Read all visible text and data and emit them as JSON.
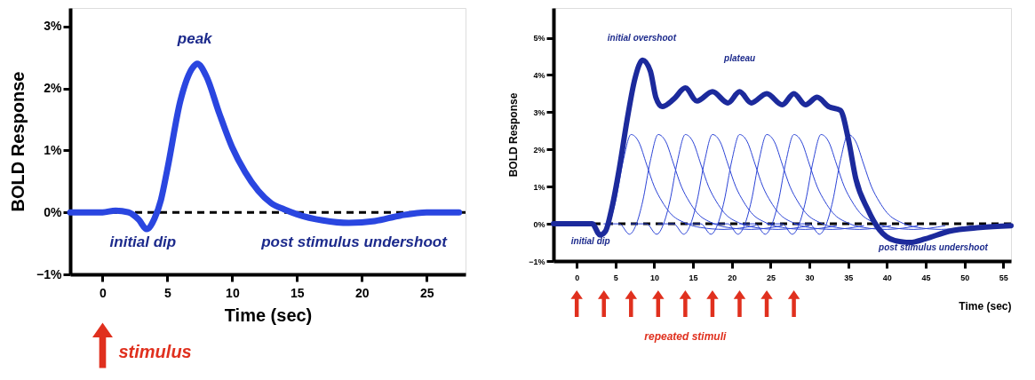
{
  "chart_data": [
    {
      "type": "line",
      "xlabel": "Time (sec)",
      "ylabel": "BOLD Response",
      "xlim": [
        -2.5,
        28
      ],
      "xticks": [
        0,
        5,
        10,
        15,
        20,
        25
      ],
      "ylim": [
        -1,
        3.3
      ],
      "yticks": [
        {
          "value": -1,
          "label": "−1%"
        },
        {
          "value": 0,
          "label": "0%"
        },
        {
          "value": 1,
          "label": "1%"
        },
        {
          "value": 2,
          "label": "2%"
        },
        {
          "value": 3,
          "label": "3%"
        }
      ],
      "grid": false,
      "series": [
        {
          "color": "#2a46e0",
          "x": [
            -2.5,
            0,
            1,
            2,
            2.8,
            3.4,
            4,
            4.5,
            5,
            6,
            7,
            7.3,
            8,
            9,
            10,
            11,
            12,
            13,
            14,
            15,
            17,
            19,
            21,
            23,
            25,
            27.5
          ],
          "values": [
            0,
            0,
            0.03,
            0,
            -0.12,
            -0.27,
            -0.1,
            0.2,
            0.7,
            1.8,
            2.35,
            2.4,
            2.2,
            1.6,
            1.05,
            0.65,
            0.35,
            0.15,
            0.05,
            -0.03,
            -0.13,
            -0.17,
            -0.14,
            -0.05,
            0,
            0
          ]
        }
      ],
      "ref_lines": [
        {
          "axis": "y",
          "value": 0,
          "color": "#000000",
          "line_style": "dashed"
        }
      ],
      "annotations": [
        "peak",
        "initial dip",
        "post stimulus undershoot",
        "stimulus"
      ]
    },
    {
      "type": "line",
      "xlabel": "Time (sec)",
      "ylabel": "BOLD Response",
      "xlim": [
        -3,
        56
      ],
      "xticks": [
        0,
        5,
        10,
        15,
        20,
        25,
        30,
        35,
        40,
        45,
        50,
        55
      ],
      "ylim": [
        -1,
        5.8
      ],
      "yticks": [
        {
          "value": -1,
          "label": "−1%"
        },
        {
          "value": 0,
          "label": "0%"
        },
        {
          "value": 1,
          "label": "1%"
        },
        {
          "value": 2,
          "label": "2%"
        },
        {
          "value": 3,
          "label": "3%"
        },
        {
          "value": 4,
          "label": "4%"
        },
        {
          "value": 5,
          "label": "5%"
        }
      ],
      "grid": false,
      "series": [
        {
          "color": "#1c2a9c",
          "x": [
            -3,
            0,
            2,
            3,
            3.7,
            4.5,
            5.5,
            6.5,
            7.5,
            8.5,
            9.5,
            10.2,
            11,
            12.5,
            14,
            15.5,
            17.5,
            19.5,
            21,
            22.5,
            24.5,
            26.5,
            28,
            29.5,
            31,
            32.5,
            34,
            35,
            36,
            37.5,
            39,
            41,
            43,
            45,
            48,
            52,
            56
          ],
          "values": [
            0,
            0,
            0,
            -0.3,
            -0.2,
            0.4,
            1.5,
            2.8,
            3.9,
            4.4,
            4.1,
            3.4,
            3.15,
            3.35,
            3.65,
            3.3,
            3.55,
            3.25,
            3.55,
            3.25,
            3.5,
            3.2,
            3.5,
            3.2,
            3.4,
            3.15,
            3.05,
            2.3,
            1.2,
            0.4,
            -0.15,
            -0.45,
            -0.5,
            -0.4,
            -0.2,
            -0.1,
            -0.05
          ]
        },
        {
          "color": "#2b43d6",
          "x": [
            0,
            2,
            3.3,
            4.2,
            5,
            6,
            7,
            8,
            9,
            10,
            11,
            12,
            14,
            16,
            19,
            23
          ],
          "values": [
            0,
            0,
            -0.28,
            0,
            0.6,
            1.7,
            2.4,
            2.2,
            1.6,
            1.0,
            0.6,
            0.3,
            0.02,
            -0.1,
            -0.15,
            -0.05
          ]
        },
        {
          "color": "#2b43d6",
          "x": [
            3.5,
            5.5,
            6.8,
            7.7,
            8.5,
            9.5,
            10.5,
            11.5,
            12.5,
            13.5,
            14.5,
            15.5,
            17.5,
            19.5,
            22.5,
            26.5
          ],
          "values": [
            0,
            0,
            -0.28,
            0,
            0.6,
            1.7,
            2.4,
            2.2,
            1.6,
            1.0,
            0.6,
            0.3,
            0.02,
            -0.1,
            -0.15,
            -0.05
          ]
        },
        {
          "color": "#2b43d6",
          "x": [
            7,
            9,
            10.3,
            11.2,
            12,
            13,
            14,
            15,
            16,
            17,
            18,
            19,
            21,
            23,
            26,
            30
          ],
          "values": [
            0,
            0,
            -0.28,
            0,
            0.6,
            1.7,
            2.4,
            2.2,
            1.6,
            1.0,
            0.6,
            0.3,
            0.02,
            -0.1,
            -0.15,
            -0.05
          ]
        },
        {
          "color": "#2b43d6",
          "x": [
            10.5,
            12.5,
            13.8,
            14.7,
            15.5,
            16.5,
            17.5,
            18.5,
            19.5,
            20.5,
            21.5,
            22.5,
            24.5,
            26.5,
            29.5,
            33.5
          ],
          "values": [
            0,
            0,
            -0.28,
            0,
            0.6,
            1.7,
            2.4,
            2.2,
            1.6,
            1.0,
            0.6,
            0.3,
            0.02,
            -0.1,
            -0.15,
            -0.05
          ]
        },
        {
          "color": "#2b43d6",
          "x": [
            14,
            16,
            17.3,
            18.2,
            19,
            20,
            21,
            22,
            23,
            24,
            25,
            26,
            28,
            30,
            33,
            37
          ],
          "values": [
            0,
            0,
            -0.28,
            0,
            0.6,
            1.7,
            2.4,
            2.2,
            1.6,
            1.0,
            0.6,
            0.3,
            0.02,
            -0.1,
            -0.15,
            -0.05
          ]
        },
        {
          "color": "#2b43d6",
          "x": [
            17.5,
            19.5,
            20.8,
            21.7,
            22.5,
            23.5,
            24.5,
            25.5,
            26.5,
            27.5,
            28.5,
            29.5,
            31.5,
            33.5,
            36.5,
            40.5
          ],
          "values": [
            0,
            0,
            -0.28,
            0,
            0.6,
            1.7,
            2.4,
            2.2,
            1.6,
            1.0,
            0.6,
            0.3,
            0.02,
            -0.1,
            -0.15,
            -0.05
          ]
        },
        {
          "color": "#2b43d6",
          "x": [
            21,
            23,
            24.3,
            25.2,
            26,
            27,
            28,
            29,
            30,
            31,
            32,
            33,
            35,
            37,
            40,
            44
          ],
          "values": [
            0,
            0,
            -0.28,
            0,
            0.6,
            1.7,
            2.4,
            2.2,
            1.6,
            1.0,
            0.6,
            0.3,
            0.02,
            -0.1,
            -0.15,
            -0.05
          ]
        },
        {
          "color": "#2b43d6",
          "x": [
            24.5,
            26.5,
            27.8,
            28.7,
            29.5,
            30.5,
            31.5,
            32.5,
            33.5,
            34.5,
            35.5,
            36.5,
            38.5,
            40.5,
            43.5,
            47.5
          ],
          "values": [
            0,
            0,
            -0.28,
            0,
            0.6,
            1.7,
            2.4,
            2.2,
            1.6,
            1.0,
            0.6,
            0.3,
            0.02,
            -0.1,
            -0.15,
            -0.05
          ]
        },
        {
          "color": "#2b43d6",
          "x": [
            28,
            30,
            31.3,
            32.2,
            33,
            34,
            35,
            36,
            37,
            38,
            39,
            40,
            42,
            44,
            47,
            51
          ],
          "values": [
            0,
            0,
            -0.28,
            0,
            0.6,
            1.7,
            2.4,
            2.2,
            1.6,
            1.0,
            0.6,
            0.3,
            0.02,
            -0.1,
            -0.15,
            -0.05
          ]
        }
      ],
      "ref_lines": [
        {
          "axis": "y",
          "value": 0,
          "color": "#000000",
          "line_style": "dashed"
        }
      ],
      "annotations": [
        "initial overshoot",
        "plateau",
        "initial dip",
        "post stimulus undershoot",
        "repeated stimuli"
      ]
    }
  ]
}
